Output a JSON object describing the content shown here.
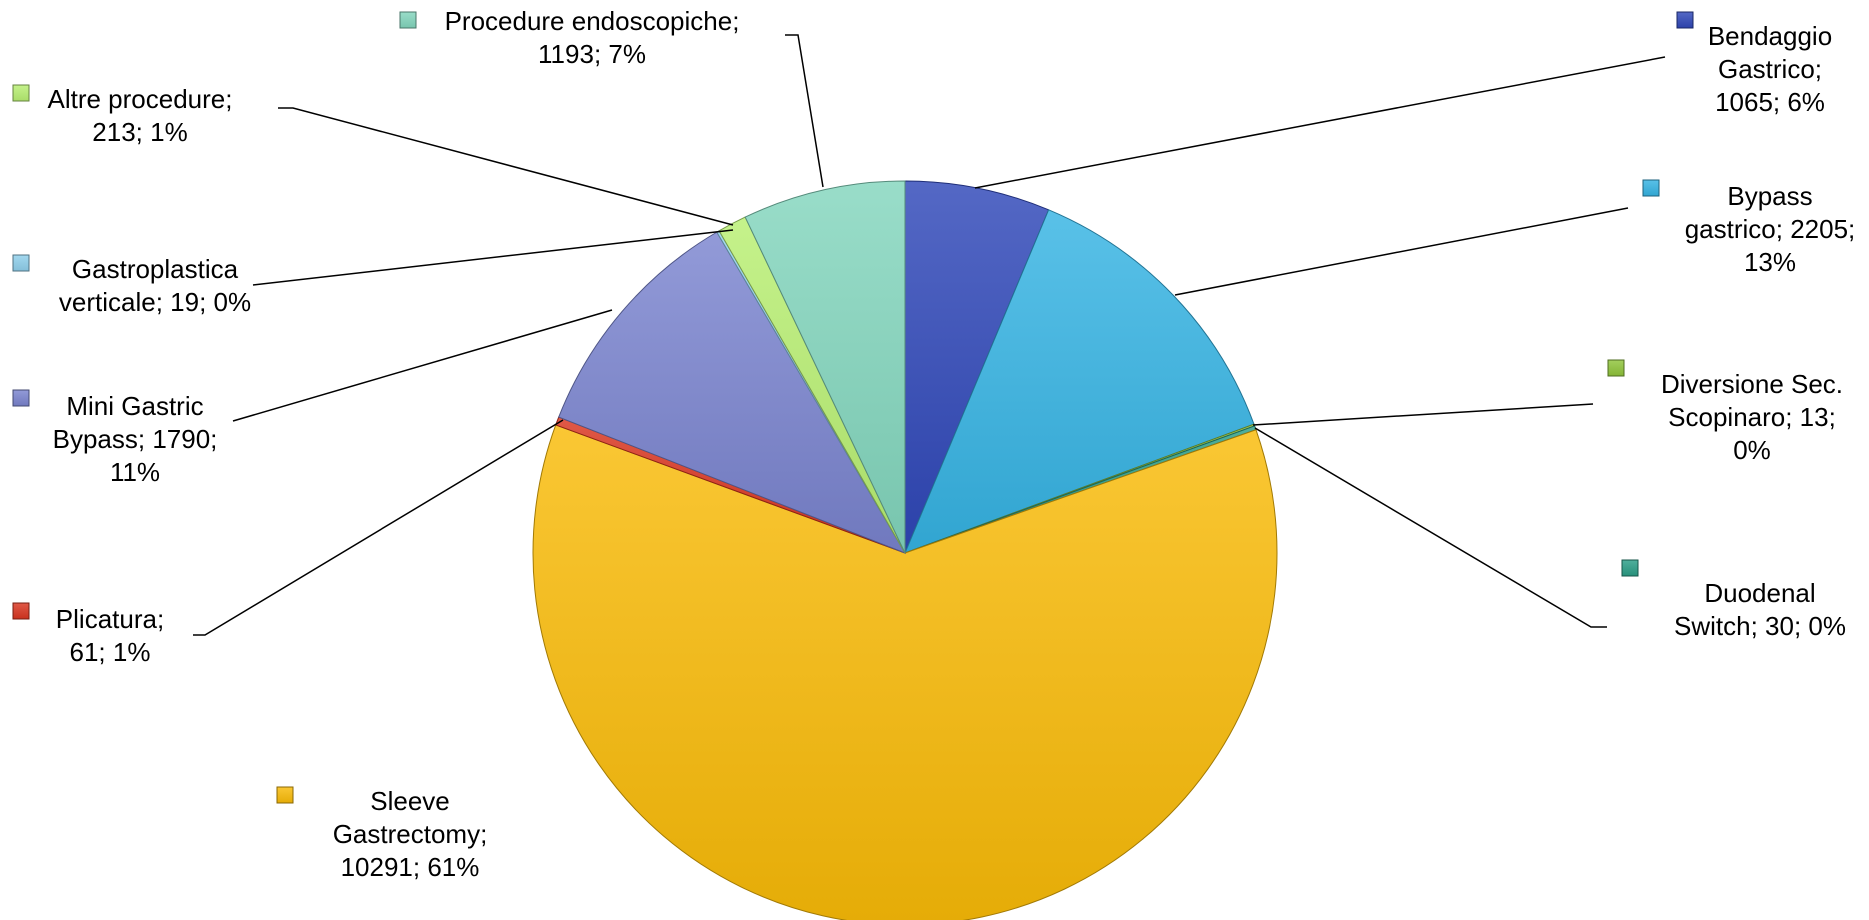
{
  "chart_data": {
    "type": "pie",
    "title": "",
    "slices": [
      {
        "name": "Bendaggio Gastrico",
        "value": 1065,
        "percent": "6%",
        "color": "#2f47b8",
        "label_lines": [
          "Bendaggio",
          "Gastrico;",
          "1065; 6%"
        ]
      },
      {
        "name": "Bypass gastrico",
        "value": 2205,
        "percent": "13%",
        "color": "#35b3e3",
        "label_lines": [
          "Bypass",
          "gastrico; 2205;",
          "13%"
        ]
      },
      {
        "name": "Diversione Sec. Scopinaro",
        "value": 13,
        "percent": "0%",
        "color": "#8fc43a",
        "label_lines": [
          "Diversione Sec.",
          "Scopinaro; 13;",
          "0%"
        ]
      },
      {
        "name": "Duodenal Switch",
        "value": 30,
        "percent": "0%",
        "color": "#2a9d86",
        "label_lines": [
          "Duodenal",
          "Switch; 30; 0%"
        ]
      },
      {
        "name": "Sleeve Gastrectomy",
        "value": 10291,
        "percent": "61%",
        "color": "#f9bb08",
        "label_lines": [
          "Sleeve",
          "Gastrectomy;",
          "10291; 61%"
        ]
      },
      {
        "name": "Plicatura",
        "value": 61,
        "percent": "1%",
        "color": "#d9341f",
        "label_lines": [
          "Plicatura;",
          "61; 1%"
        ]
      },
      {
        "name": "Mini Gastric Bypass",
        "value": 1790,
        "percent": "11%",
        "color": "#7a84cf",
        "label_lines": [
          "Mini Gastric",
          "Bypass; 1790;",
          "11%"
        ]
      },
      {
        "name": "Gastroplastica verticale",
        "value": 19,
        "percent": "0%",
        "color": "#8fd0ec",
        "label_lines": [
          "Gastroplastica",
          "verticale; 19; 0%"
        ]
      },
      {
        "name": "Altre procedure",
        "value": 213,
        "percent": "1%",
        "color": "#b8ef72",
        "label_lines": [
          "Altre procedure;",
          "213; 1%"
        ]
      },
      {
        "name": "Procedure endoscopiche",
        "value": 1193,
        "percent": "7%",
        "color": "#82d6bd",
        "label_lines": [
          "Procedure endoscopiche;",
          "1193; 7%"
        ]
      }
    ]
  }
}
